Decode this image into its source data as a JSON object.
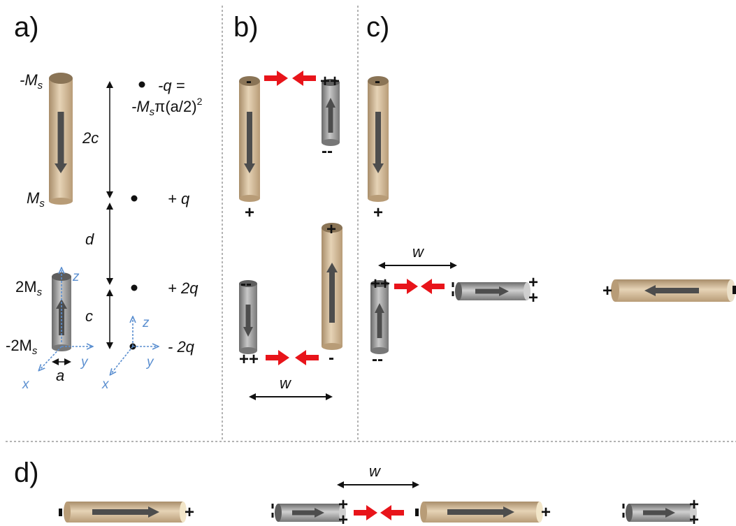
{
  "panels": {
    "a": "a)",
    "b": "b)",
    "c": "c)",
    "d": "d)"
  },
  "panel_a": {
    "labels": {
      "neg_ms": "-M",
      "ms": "M",
      "two_ms": "2M",
      "neg_two_ms": "-2M",
      "s_sub": "s",
      "two_c": "2c",
      "d": "d",
      "c": "c",
      "a": "a"
    },
    "charges": {
      "neg_q_line1": "-q =",
      "neg_q_line2_a": "-M",
      "neg_q_line2_b": "π(a/2)",
      "neg_q_line2_sup": "2",
      "plus_q": "+ q",
      "plus_2q": "+ 2q",
      "minus_2q": "- 2q"
    },
    "axes": {
      "x": "x",
      "y": "y",
      "z": "z"
    }
  },
  "separation_label": "w",
  "signs": {
    "plus": "+",
    "minus": "-",
    "double_plus": "++",
    "double_minus": "--"
  },
  "colors": {
    "tan_rod": "#d7bf9d",
    "gray_rod": "#8a8a8a",
    "force_arrow": "#e8141a",
    "magnetization_arrow": "#4d4d4d",
    "axis_blue": "#5b8fd0",
    "divider": "#9a9a9a"
  }
}
